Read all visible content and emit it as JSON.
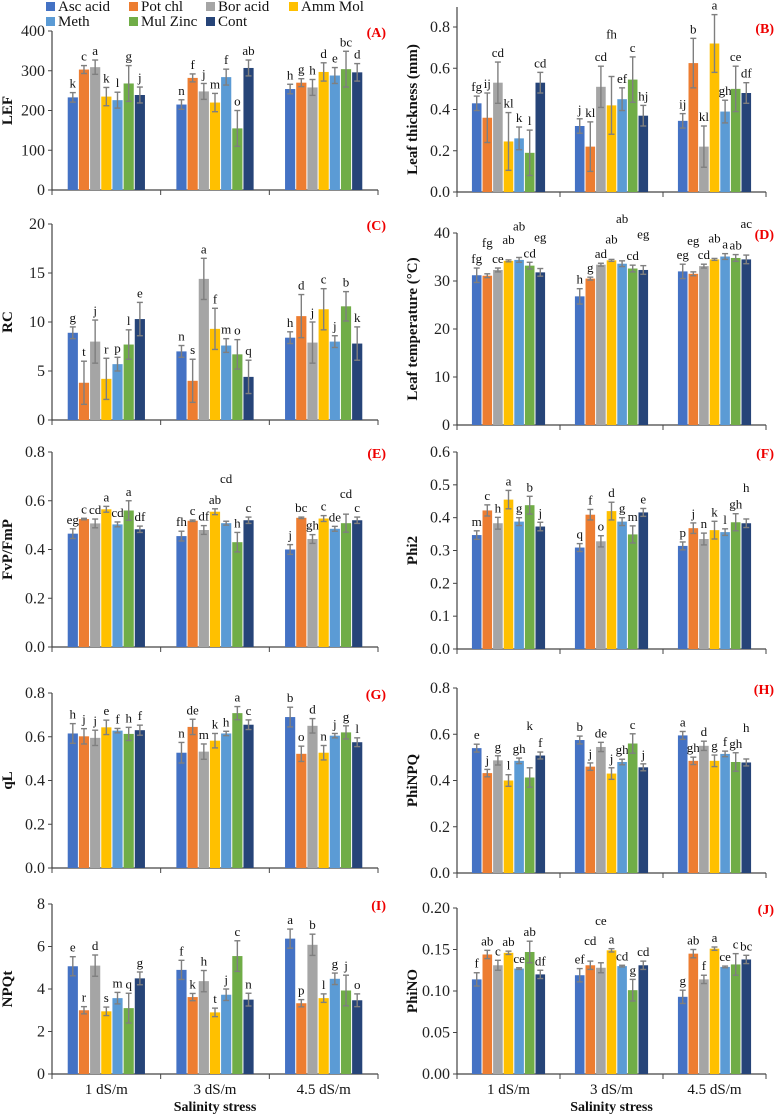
{
  "legend": [
    "Asc acid",
    "Pot chl",
    "Bor acid",
    "Amm Mol",
    "Meth",
    "Mul Zinc",
    "Cont"
  ],
  "colors": [
    "#4472C4",
    "#ED7D31",
    "#A5A5A5",
    "#FFC000",
    "#5B9BD5",
    "#70AD47",
    "#264478"
  ],
  "error_color": "#7f7f7f",
  "panel_label_color": "#ee0000",
  "categories": [
    "1 dS/m",
    "3 dS/m",
    "4.5 dS/m"
  ],
  "xlabel": "Salinity stress",
  "chart_data": [
    {
      "panel": "(A)",
      "type": "bar",
      "ylabel": "LEF",
      "ylim": [
        0,
        400
      ],
      "yticks": [
        "0",
        "100",
        "200",
        "300",
        "400"
      ],
      "values": [
        [
          233,
          215,
          254
        ],
        [
          303,
          282,
          270
        ],
        [
          309,
          248,
          258
        ],
        [
          235,
          220,
          297
        ],
        [
          226,
          284,
          288
        ],
        [
          268,
          155,
          304
        ],
        [
          239,
          307,
          296
        ]
      ],
      "errors": [
        [
          12,
          12,
          12
        ],
        [
          10,
          10,
          10
        ],
        [
          18,
          20,
          20
        ],
        [
          23,
          23,
          23
        ],
        [
          20,
          20,
          20
        ],
        [
          45,
          45,
          45
        ],
        [
          20,
          20,
          22
        ]
      ],
      "letters": [
        [
          "k",
          "n",
          "h"
        ],
        [
          "c",
          "f",
          "g"
        ],
        [
          "a",
          "j",
          "h"
        ],
        [
          "k",
          "m",
          "d"
        ],
        [
          "l",
          "f",
          "e"
        ],
        [
          "g",
          "o",
          "bc"
        ],
        [
          "j",
          "ab",
          "d"
        ]
      ]
    },
    {
      "panel": "(B)",
      "type": "bar",
      "ylabel": "Leaf thickness (mm)",
      "ylim": [
        0,
        0.8
      ],
      "yticks": [
        "0.0",
        "0.2",
        "0.4",
        "0.6",
        "0.8"
      ],
      "values": [
        [
          0.43,
          0.32,
          0.345
        ],
        [
          0.36,
          0.22,
          0.625
        ],
        [
          0.53,
          0.51,
          0.22
        ],
        [
          0.245,
          0.42,
          0.72
        ],
        [
          0.26,
          0.45,
          0.39
        ],
        [
          0.19,
          0.545,
          0.5
        ],
        [
          0.53,
          0.37,
          0.48
        ]
      ],
      "errors": [
        [
          0.035,
          0.035,
          0.035
        ],
        [
          0.12,
          0.12,
          0.12
        ],
        [
          0.1,
          0.1,
          0.1
        ],
        [
          0.14,
          0.14,
          0.14
        ],
        [
          0.055,
          0.055,
          0.055
        ],
        [
          0.11,
          0.11,
          0.11
        ],
        [
          0.05,
          0.05,
          0.05
        ]
      ],
      "letters": [
        [
          "fg",
          "j",
          "ij"
        ],
        [
          "ij",
          "kl",
          "b"
        ],
        [
          "cd",
          "cd",
          "kl"
        ],
        [
          "kl",
          "fh",
          "a"
        ],
        [
          "k",
          "ef",
          "gh"
        ],
        [
          "l",
          "c",
          "ce"
        ],
        [
          "cd",
          "hj",
          "df"
        ]
      ]
    },
    {
      "panel": "(C)",
      "type": "bar",
      "ylabel": "RC",
      "ylim": [
        0,
        20
      ],
      "yticks": [
        "0",
        "5",
        "10",
        "15",
        "20"
      ],
      "values": [
        [
          8.9,
          7.0,
          8.4
        ],
        [
          3.8,
          4.0,
          10.6
        ],
        [
          8.0,
          14.4,
          7.9
        ],
        [
          4.2,
          9.3,
          11.3
        ],
        [
          5.7,
          7.6,
          8.0
        ],
        [
          7.7,
          6.7,
          11.6
        ],
        [
          10.3,
          4.4,
          7.8
        ]
      ],
      "errors": [
        [
          0.6,
          0.6,
          0.6
        ],
        [
          2.2,
          2.2,
          2.2
        ],
        [
          2.2,
          2.1,
          2.1
        ],
        [
          2.1,
          2.1,
          2.1
        ],
        [
          0.7,
          0.7,
          0.6
        ],
        [
          1.5,
          1.5,
          1.5
        ],
        [
          1.7,
          1.7,
          1.7
        ]
      ],
      "letters": [
        [
          "g",
          "n",
          "h"
        ],
        [
          "t",
          "s",
          "d"
        ],
        [
          "j",
          "a",
          "j"
        ],
        [
          "r",
          "f",
          "c"
        ],
        [
          "p",
          "m",
          "j"
        ],
        [
          "l",
          "o",
          "b"
        ],
        [
          "e",
          "q",
          "k"
        ]
      ]
    },
    {
      "panel": "(D)",
      "type": "bar",
      "ylabel": "Leaf temperature (°C)",
      "ylim": [
        0,
        40
      ],
      "yticks": [
        "0",
        "10",
        "20",
        "30",
        "40"
      ],
      "values": [
        [
          31.2,
          26.8,
          32.0
        ],
        [
          31.1,
          30.5,
          31.5
        ],
        [
          32.3,
          33.4,
          33.1
        ],
        [
          34.2,
          34.3,
          34.5
        ],
        [
          34.4,
          33.6,
          35.1
        ],
        [
          33.2,
          32.6,
          34.8
        ],
        [
          31.8,
          32.3,
          34.5
        ]
      ],
      "errors": [
        [
          1.5,
          1.6,
          1.5
        ],
        [
          0.4,
          0.3,
          0.4
        ],
        [
          0.4,
          0.3,
          0.4
        ],
        [
          0.2,
          0.2,
          0.2
        ],
        [
          0.5,
          0.6,
          0.6
        ],
        [
          0.7,
          0.7,
          0.7
        ],
        [
          0.8,
          0.9,
          0.9
        ]
      ],
      "letters": [
        [
          "fg",
          "h",
          "eg"
        ],
        [
          "fg",
          "g",
          "eg"
        ],
        [
          "ce",
          "ad",
          "cd"
        ],
        [
          "ab",
          "ab",
          "ab"
        ],
        [
          "ab",
          "ab",
          "a"
        ],
        [
          "cd",
          "cd",
          "ab"
        ],
        [
          "eg",
          "eg",
          "ac"
        ]
      ]
    },
    {
      "panel": "(E)",
      "type": "bar",
      "ylabel": "FvP/FmP",
      "ylim": [
        0,
        0.8
      ],
      "yticks": [
        "0.0",
        "0.2",
        "0.4",
        "0.6",
        "0.8"
      ],
      "values": [
        [
          0.465,
          0.455,
          0.4
        ],
        [
          0.525,
          0.518,
          0.53
        ],
        [
          0.507,
          0.48,
          0.443
        ],
        [
          0.565,
          0.555,
          0.527
        ],
        [
          0.503,
          0.508,
          0.485
        ],
        [
          0.56,
          0.43,
          0.508
        ],
        [
          0.483,
          0.52,
          0.52
        ]
      ],
      "errors": [
        [
          0.02,
          0.02,
          0.02
        ],
        [
          0.003,
          0.003,
          0.003
        ],
        [
          0.018,
          0.018,
          0.018
        ],
        [
          0.012,
          0.012,
          0.012
        ],
        [
          0.01,
          0.008,
          0.01
        ],
        [
          0.04,
          0.04,
          0.037
        ],
        [
          0.013,
          0.013,
          0.013
        ]
      ],
      "letters": [
        [
          "eg",
          "fh",
          "j"
        ],
        [
          "c",
          "c",
          "bc"
        ],
        [
          "cd",
          "df",
          "gh"
        ],
        [
          "a",
          "ab",
          "c"
        ],
        [
          "cd",
          "cd",
          "de"
        ],
        [
          "a",
          "h",
          "cd"
        ],
        [
          "df",
          "c",
          "c"
        ]
      ]
    },
    {
      "panel": "(F)",
      "type": "bar",
      "ylabel": "Phi2",
      "ylim": [
        0,
        0.6
      ],
      "yticks": [
        "0.0",
        "0.1",
        "0.2",
        "0.3",
        "0.4",
        "0.5",
        "0.6"
      ],
      "values": [
        [
          0.347,
          0.309,
          0.314
        ],
        [
          0.422,
          0.409,
          0.368
        ],
        [
          0.383,
          0.328,
          0.335
        ],
        [
          0.455,
          0.42,
          0.362
        ],
        [
          0.388,
          0.388,
          0.356
        ],
        [
          0.438,
          0.349,
          0.386
        ],
        [
          0.373,
          0.416,
          0.383
        ]
      ],
      "errors": [
        [
          0.013,
          0.012,
          0.012
        ],
        [
          0.017,
          0.016,
          0.016
        ],
        [
          0.018,
          0.017,
          0.018
        ],
        [
          0.028,
          0.027,
          0.027
        ],
        [
          0.012,
          0.012,
          0.01
        ],
        [
          0.027,
          0.026,
          0.026
        ],
        [
          0.013,
          0.012,
          0.013
        ]
      ],
      "letters": [
        [
          "m",
          "q",
          "p"
        ],
        [
          "c",
          "f",
          "j"
        ],
        [
          "h",
          "o",
          "n"
        ],
        [
          "a",
          "d",
          "k"
        ],
        [
          "g",
          "g",
          "l"
        ],
        [
          "b",
          "m",
          "gh"
        ],
        [
          "j",
          "e",
          "h"
        ]
      ]
    },
    {
      "panel": "(G)",
      "type": "bar",
      "ylabel": "qL",
      "ylim": [
        0,
        0.8
      ],
      "yticks": [
        "0.0",
        "0.2",
        "0.4",
        "0.6",
        "0.8"
      ],
      "values": [
        [
          0.615,
          0.527,
          0.69
        ],
        [
          0.602,
          0.645,
          0.522
        ],
        [
          0.595,
          0.532,
          0.65
        ],
        [
          0.643,
          0.582,
          0.527
        ],
        [
          0.628,
          0.615,
          0.605
        ],
        [
          0.613,
          0.708,
          0.62
        ],
        [
          0.63,
          0.655,
          0.575
        ]
      ],
      "errors": [
        [
          0.045,
          0.047,
          0.045
        ],
        [
          0.035,
          0.035,
          0.035
        ],
        [
          0.035,
          0.035,
          0.033
        ],
        [
          0.033,
          0.033,
          0.033
        ],
        [
          0.01,
          0.01,
          0.01
        ],
        [
          0.03,
          0.03,
          0.03
        ],
        [
          0.023,
          0.022,
          0.02
        ]
      ],
      "letters": [
        [
          "h",
          "n",
          "b"
        ],
        [
          "j",
          "de",
          "o"
        ],
        [
          "j",
          "m",
          "d"
        ],
        [
          "e",
          "k",
          "n"
        ],
        [
          "f",
          "h",
          "j"
        ],
        [
          "h",
          "a",
          "g"
        ],
        [
          "f",
          "c",
          "l"
        ]
      ]
    },
    {
      "panel": "(H)",
      "type": "bar",
      "ylabel": "PhiNPQ",
      "ylim": [
        0,
        0.8
      ],
      "yticks": [
        "0.0",
        "0.2",
        "0.4",
        "0.6",
        "0.8"
      ],
      "values": [
        [
          0.54,
          0.575,
          0.595
        ],
        [
          0.432,
          0.46,
          0.485
        ],
        [
          0.487,
          0.545,
          0.55
        ],
        [
          0.4,
          0.43,
          0.485
        ],
        [
          0.485,
          0.48,
          0.515
        ],
        [
          0.413,
          0.56,
          0.48
        ],
        [
          0.508,
          0.457,
          0.478
        ]
      ],
      "errors": [
        [
          0.017,
          0.017,
          0.017
        ],
        [
          0.016,
          0.016,
          0.016
        ],
        [
          0.02,
          0.02,
          0.02
        ],
        [
          0.025,
          0.025,
          0.025
        ],
        [
          0.012,
          0.012,
          0.012
        ],
        [
          0.042,
          0.042,
          0.04
        ],
        [
          0.015,
          0.015,
          0.015
        ]
      ],
      "letters": [
        [
          "e",
          "b",
          "a"
        ],
        [
          "j",
          "j",
          "gh"
        ],
        [
          "g",
          "de",
          "d"
        ],
        [
          "l",
          "j",
          "g"
        ],
        [
          "gh",
          "gh",
          "f"
        ],
        [
          "k",
          "c",
          "gh"
        ],
        [
          "f",
          "j",
          "h"
        ]
      ]
    },
    {
      "panel": "(I)",
      "type": "bar",
      "ylabel": "NPQt",
      "ylim": [
        0,
        8
      ],
      "yticks": [
        "0",
        "2",
        "4",
        "6",
        "8"
      ],
      "values": [
        [
          5.07,
          4.9,
          6.37
        ],
        [
          3.0,
          3.62,
          3.33
        ],
        [
          5.1,
          4.37,
          6.08
        ],
        [
          2.95,
          2.9,
          3.57
        ],
        [
          3.57,
          3.73,
          4.48
        ],
        [
          3.1,
          5.55,
          3.93
        ],
        [
          4.5,
          3.5,
          3.47
        ]
      ],
      "errors": [
        [
          0.45,
          0.45,
          0.45
        ],
        [
          0.17,
          0.17,
          0.17
        ],
        [
          0.5,
          0.5,
          0.5
        ],
        [
          0.2,
          0.2,
          0.2
        ],
        [
          0.27,
          0.27,
          0.27
        ],
        [
          0.7,
          0.72,
          0.72
        ],
        [
          0.3,
          0.3,
          0.3
        ]
      ],
      "letters": [
        [
          "e",
          "f",
          "a"
        ],
        [
          "r",
          "k",
          "p"
        ],
        [
          "d",
          "h",
          "b"
        ],
        [
          "s",
          "t",
          "l"
        ],
        [
          "m",
          "j",
          "g"
        ],
        [
          "q",
          "c",
          "j"
        ],
        [
          "g",
          "n",
          "o"
        ]
      ]
    },
    {
      "panel": "(J)",
      "type": "bar",
      "ylabel": "PhiNO",
      "ylim": [
        0,
        0.2
      ],
      "yticks": [
        "0.00",
        "0.05",
        "0.10",
        "0.15",
        "0.20"
      ],
      "values": [
        [
          0.114,
          0.119,
          0.093
        ],
        [
          0.144,
          0.131,
          0.145
        ],
        [
          0.131,
          0.128,
          0.114
        ],
        [
          0.146,
          0.149,
          0.151
        ],
        [
          0.127,
          0.13,
          0.129
        ],
        [
          0.147,
          0.101,
          0.132
        ],
        [
          0.12,
          0.131,
          0.138
        ]
      ],
      "errors": [
        [
          0.008,
          0.008,
          0.008
        ],
        [
          0.005,
          0.005,
          0.005
        ],
        [
          0.006,
          0.006,
          0.005
        ],
        [
          0.002,
          0.002,
          0.002
        ],
        [
          0.001,
          0.001,
          0.001
        ],
        [
          0.013,
          0.013,
          0.013
        ],
        [
          0.005,
          0.005,
          0.005
        ]
      ],
      "letters": [
        [
          "f",
          "ef",
          "g"
        ],
        [
          "ab",
          "cd",
          "ab"
        ],
        [
          "c",
          "ce",
          "f"
        ],
        [
          "ab",
          "a",
          "a"
        ],
        [
          "ce",
          "cd",
          "ce"
        ],
        [
          "ab",
          "g",
          "c"
        ],
        [
          "df",
          "cd",
          "bc"
        ]
      ]
    }
  ]
}
